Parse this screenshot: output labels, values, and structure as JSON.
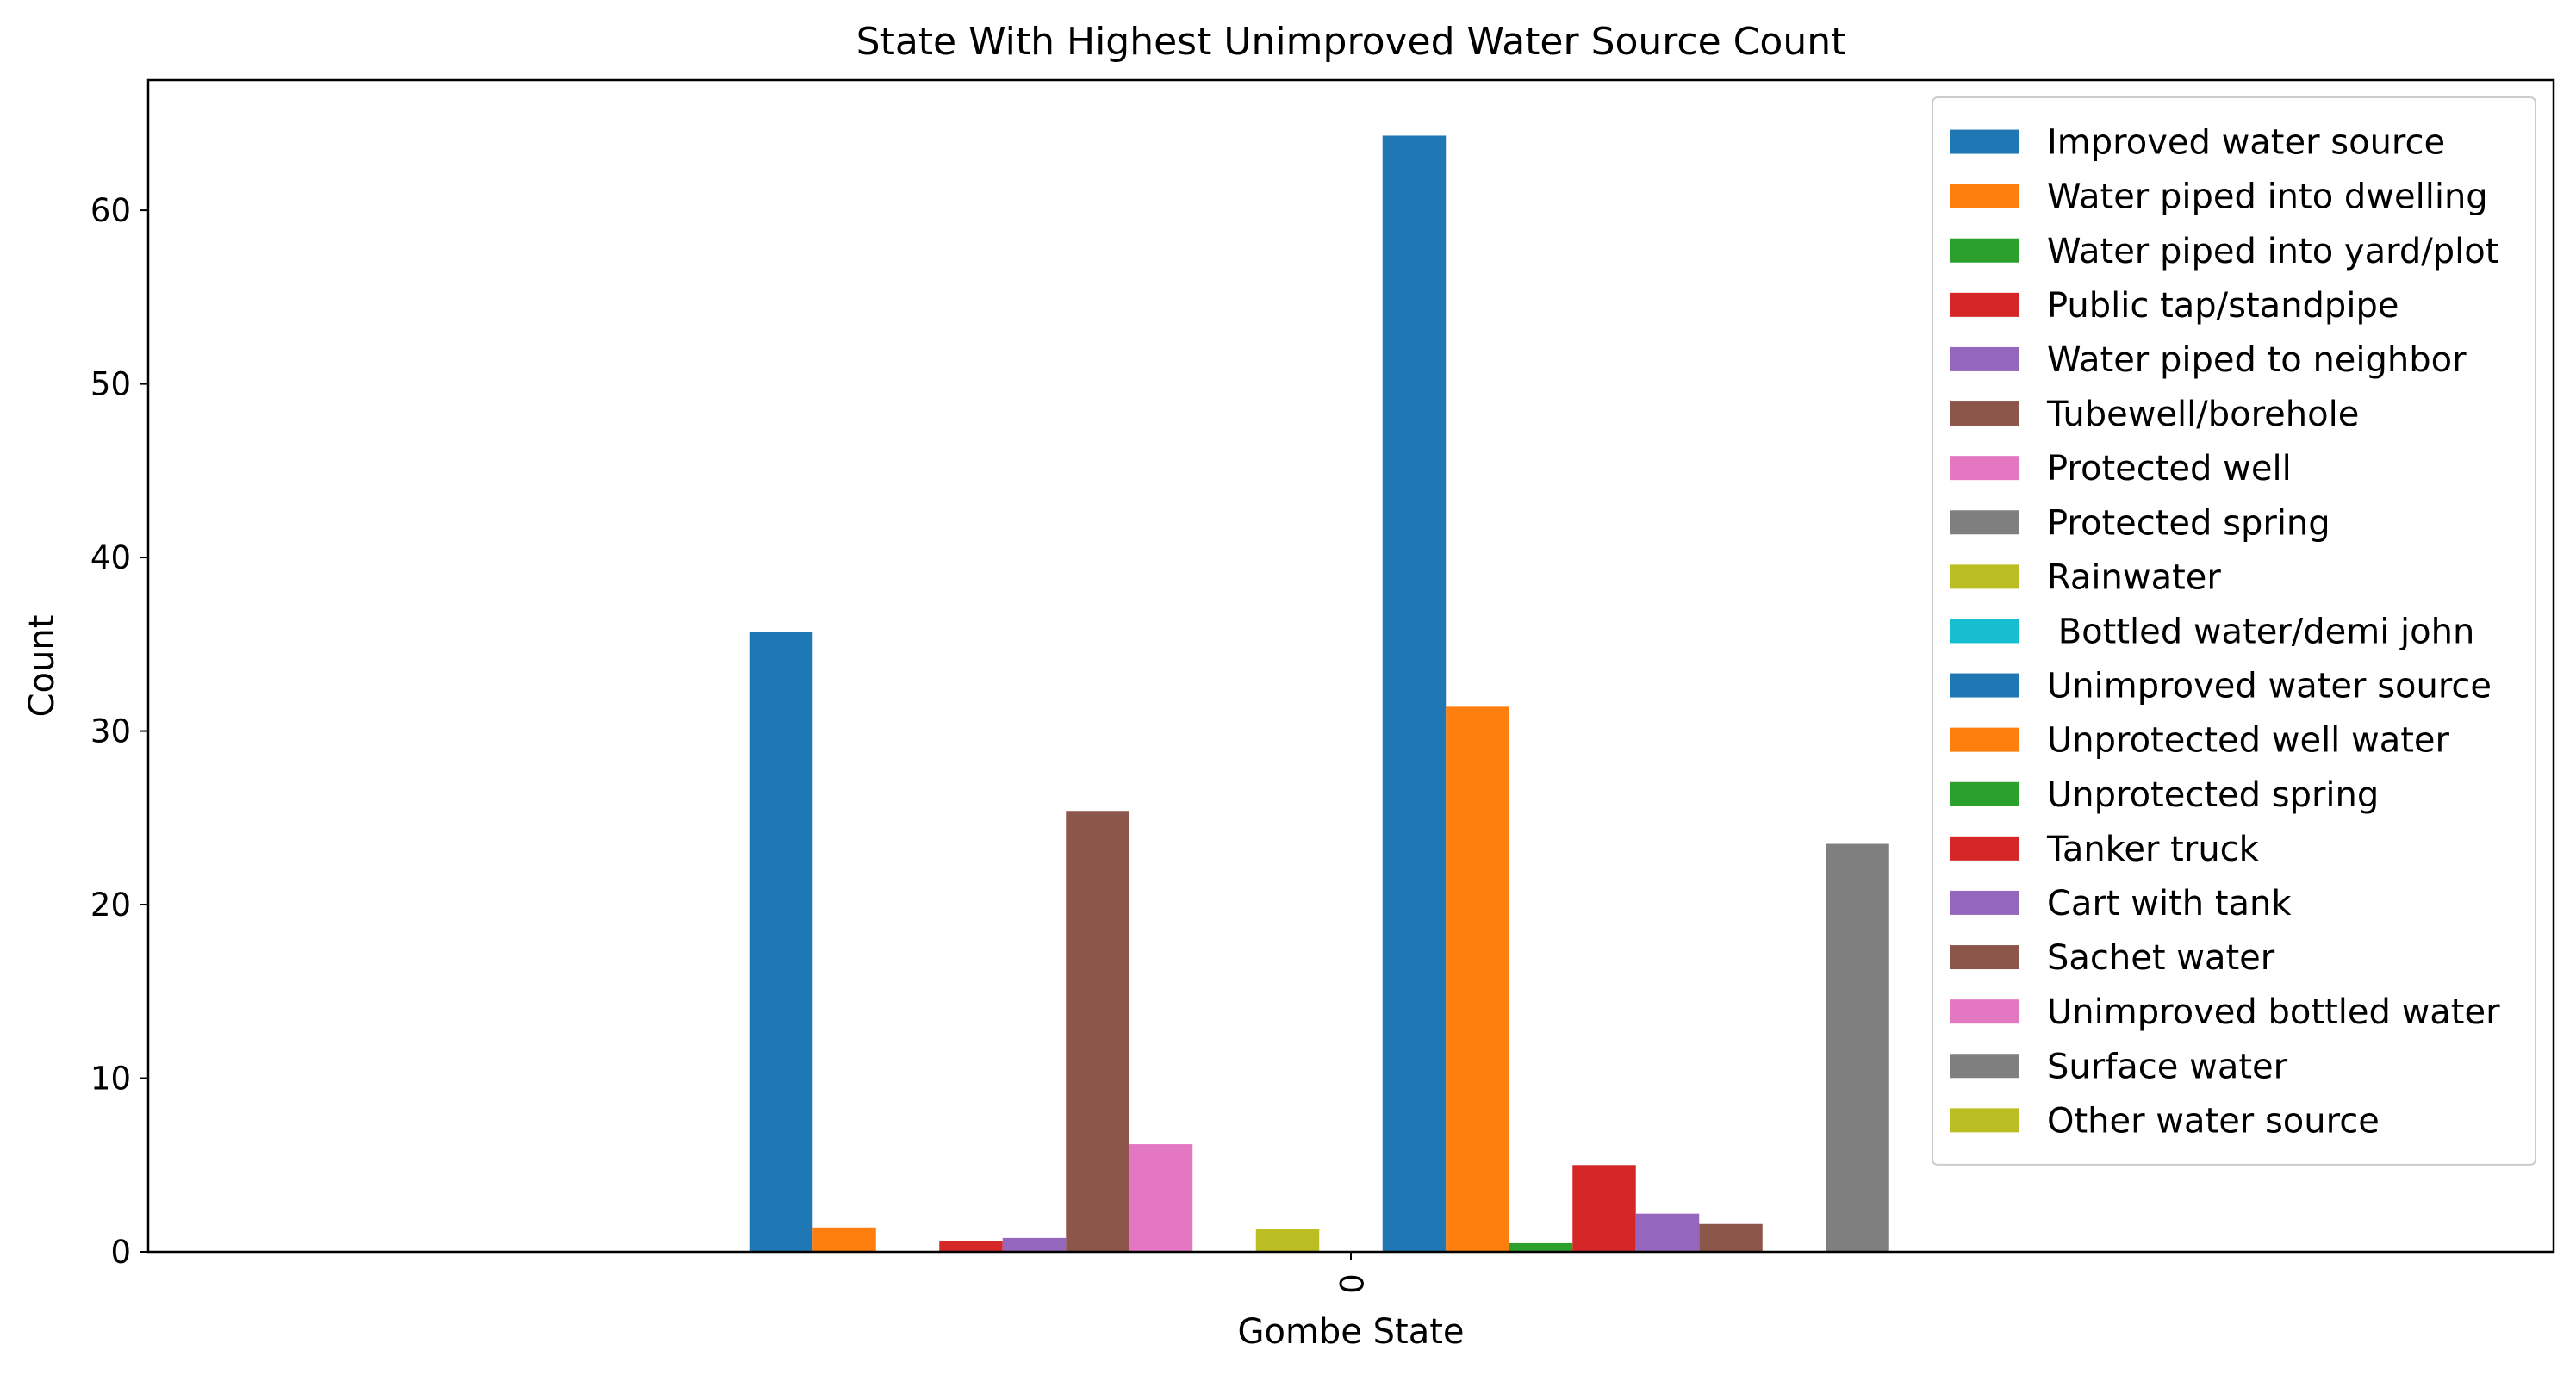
{
  "chart_data": {
    "type": "bar",
    "title": "State With Highest Unimproved Water Source Count",
    "xlabel": "Gombe State",
    "ylabel": "Count",
    "categories": [
      "0"
    ],
    "ylim": [
      0,
      67.5
    ],
    "yticks": [
      0,
      10,
      20,
      30,
      40,
      50,
      60
    ],
    "grid": false,
    "legend_position": "top-right",
    "series": [
      {
        "name": "Improved water source",
        "color": "#1f77b4",
        "values": [
          35.7
        ]
      },
      {
        "name": "Water piped into dwelling",
        "color": "#ff7f0e",
        "values": [
          1.4
        ]
      },
      {
        "name": "Water piped into yard/plot",
        "color": "#2ca02c",
        "values": [
          0
        ]
      },
      {
        "name": "Public tap/standpipe",
        "color": "#d62728",
        "values": [
          0.6
        ]
      },
      {
        "name": "Water piped to neighbor",
        "color": "#9467bd",
        "values": [
          0.8
        ]
      },
      {
        "name": "Tubewell/borehole",
        "color": "#8c564b",
        "values": [
          25.4
        ]
      },
      {
        "name": "Protected well",
        "color": "#e377c2",
        "values": [
          6.2
        ]
      },
      {
        "name": "Protected spring",
        "color": "#7f7f7f",
        "values": [
          0
        ]
      },
      {
        "name": "Rainwater",
        "color": "#bcbd22",
        "values": [
          1.3
        ]
      },
      {
        "name": " Bottled water/demi john",
        "color": "#17becf",
        "values": [
          0
        ]
      },
      {
        "name": "Unimproved water source",
        "color": "#1f77b4",
        "values": [
          64.3
        ]
      },
      {
        "name": "Unprotected well water",
        "color": "#ff7f0e",
        "values": [
          31.4
        ]
      },
      {
        "name": "Unprotected spring",
        "color": "#2ca02c",
        "values": [
          0.5
        ]
      },
      {
        "name": "Tanker truck",
        "color": "#d62728",
        "values": [
          5.0
        ]
      },
      {
        "name": "Cart with tank",
        "color": "#9467bd",
        "values": [
          2.2
        ]
      },
      {
        "name": "Sachet water",
        "color": "#8c564b",
        "values": [
          1.6
        ]
      },
      {
        "name": "Unimproved bottled water",
        "color": "#e377c2",
        "values": [
          0
        ]
      },
      {
        "name": "Surface water",
        "color": "#7f7f7f",
        "values": [
          23.5
        ]
      },
      {
        "name": "Other water source",
        "color": "#bcbd22",
        "values": [
          0
        ]
      }
    ]
  }
}
